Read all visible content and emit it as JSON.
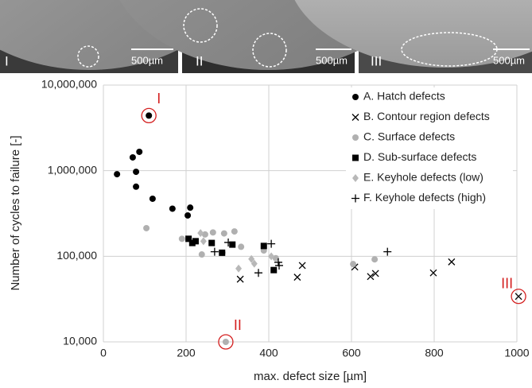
{
  "images": [
    {
      "label": "I",
      "scale": "500µm"
    },
    {
      "label": "II",
      "scale": "500µm"
    },
    {
      "label": "III",
      "scale": "500µm"
    }
  ],
  "chart_data": {
    "type": "scatter",
    "x_label": "max. defect size [µm]",
    "y_label": "Number of cycles to failure [-]",
    "xlim": [
      0,
      1000
    ],
    "xticks": [
      0,
      200,
      400,
      600,
      800,
      1000
    ],
    "ylim": [
      10000,
      10000000
    ],
    "y_log": true,
    "grid": true,
    "legend": "upper right",
    "yticks": [
      {
        "value": 10000,
        "label": "10,000"
      },
      {
        "value": 100000,
        "label": "100,000"
      },
      {
        "value": 1000000,
        "label": "1,000,000"
      },
      {
        "value": 10000000,
        "label": "10,000,000"
      }
    ],
    "series": [
      {
        "name": "A. Hatch defects",
        "marker": "circle",
        "color": "#000000",
        "x": [
          33,
          71,
          87,
          79,
          79,
          119,
          167,
          204,
          210,
          110
        ],
        "values": [
          910000,
          1430000,
          1660000,
          970000,
          650000,
          470000,
          360000,
          300000,
          370000,
          4400000
        ]
      },
      {
        "name": "B. Contour region defects",
        "marker": "x",
        "color": "#000000",
        "x": [
          331,
          469,
          481,
          608,
          646,
          658,
          798,
          842,
          1004
        ],
        "values": [
          54000,
          57000,
          78000,
          75000,
          58000,
          63000,
          64000,
          86000,
          34000
        ]
      },
      {
        "name": "C. Surface defects",
        "marker": "circle",
        "color": "#b0b0b0",
        "x": [
          104,
          190,
          246,
          265,
          238,
          288,
          317,
          333,
          292,
          388,
          417,
          604,
          656,
          296
        ],
        "values": [
          213000,
          160000,
          180000,
          190000,
          105000,
          110000,
          195000,
          129000,
          185000,
          117000,
          95000,
          81000,
          92000,
          10000
        ]
      },
      {
        "name": "D. Sub-surface defects",
        "marker": "square",
        "color": "#000000",
        "x": [
          206,
          215,
          223,
          262,
          287,
          312,
          388,
          412
        ],
        "values": [
          160000,
          143000,
          150000,
          143000,
          110000,
          137000,
          132000,
          69000
        ]
      },
      {
        "name": "E. Keyhole defects (low)",
        "marker": "diamond",
        "color": "#b8b8b8",
        "x": [
          235,
          242,
          327,
          358,
          365,
          406
        ],
        "values": [
          187000,
          150000,
          72000,
          93000,
          82000,
          100000
        ]
      },
      {
        "name": "F. Keyhole defects (high)",
        "marker": "plus",
        "color": "#000000",
        "x": [
          269,
          302,
          375,
          406,
          423,
          425,
          687
        ],
        "values": [
          113000,
          145000,
          64000,
          140000,
          85000,
          78000,
          113000
        ]
      }
    ],
    "annotations": [
      {
        "text": "I",
        "x": 110,
        "y": 4400000,
        "color": "#d42020"
      },
      {
        "text": "II",
        "x": 296,
        "y": 10000,
        "color": "#d42020"
      },
      {
        "text": "III",
        "x": 1004,
        "y": 34000,
        "color": "#d42020"
      }
    ]
  }
}
